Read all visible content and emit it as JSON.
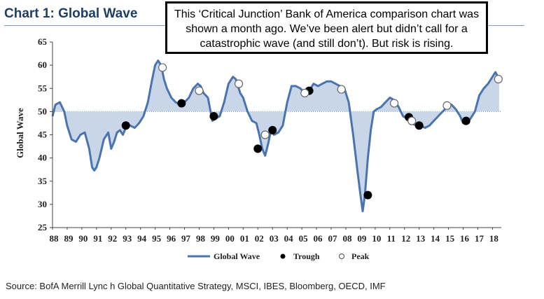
{
  "title": "Chart 1: Global Wave",
  "annotation": "This ‘Critical Junction’ Bank of America comparison chart was shown a month ago. We’ve been alert but didn’t call for a catastrophic wave (and still don’t). But risk is rising.",
  "source": "Source: BofA Merrill Lync h Global Quantitative Strategy, MSCI, IBES, Bloomberg, OECD, IMF",
  "colors": {
    "line": "#4a74b0",
    "fill": "#c9d6e8",
    "title": "#1f3d66",
    "reference": "#6b7f99"
  },
  "chart_data": {
    "type": "line",
    "ylabel": "Global Wave",
    "ylim": [
      25,
      65
    ],
    "yticks": [
      25,
      30,
      35,
      40,
      45,
      50,
      55,
      60,
      65
    ],
    "xlim": [
      1988,
      2018.6
    ],
    "xtick_labels": [
      "88",
      "89",
      "90",
      "91",
      "92",
      "93",
      "94",
      "95",
      "96",
      "97",
      "98",
      "99",
      "00",
      "01",
      "02",
      "03",
      "04",
      "05",
      "06",
      "07",
      "08",
      "09",
      "10",
      "11",
      "12",
      "13",
      "14",
      "15",
      "16",
      "17",
      "18"
    ],
    "reference_line": 50,
    "legend": {
      "placement": "bottom",
      "items": [
        {
          "label": "Global Wave",
          "symbol": "line"
        },
        {
          "label": "Trough",
          "symbol": "filled-dot"
        },
        {
          "label": "Peak",
          "symbol": "open-dot"
        }
      ]
    },
    "series": [
      {
        "name": "Global Wave",
        "x": [
          1988.0,
          1988.2,
          1988.5,
          1988.8,
          1989.0,
          1989.3,
          1989.6,
          1989.9,
          1990.2,
          1990.5,
          1990.7,
          1990.85,
          1991.0,
          1991.2,
          1991.5,
          1991.8,
          1992.0,
          1992.2,
          1992.4,
          1992.6,
          1992.8,
          1993.0,
          1993.3,
          1993.6,
          1993.9,
          1994.2,
          1994.5,
          1994.8,
          1995.0,
          1995.2,
          1995.4,
          1995.6,
          1995.8,
          1996.1,
          1996.4,
          1996.7,
          1997.0,
          1997.3,
          1997.6,
          1997.9,
          1998.1,
          1998.3,
          1998.6,
          1998.9,
          1999.1,
          1999.4,
          1999.7,
          2000.0,
          2000.3,
          2000.5,
          2000.8,
          2001.0,
          2001.3,
          2001.6,
          2001.9,
          2002.1,
          2002.3,
          2002.5,
          2002.7,
          2002.9,
          2003.1,
          2003.4,
          2003.7,
          2004.0,
          2004.3,
          2004.6,
          2004.9,
          2005.2,
          2005.5,
          2005.8,
          2006.1,
          2006.4,
          2006.7,
          2007.0,
          2007.3,
          2007.6,
          2007.9,
          2008.2,
          2008.5,
          2008.8,
          2009.0,
          2009.15,
          2009.3,
          2009.5,
          2009.7,
          2009.9,
          2010.1,
          2010.4,
          2010.7,
          2011.0,
          2011.3,
          2011.6,
          2011.9,
          2012.2,
          2012.5,
          2012.8,
          2013.1,
          2013.4,
          2013.7,
          2014.0,
          2014.3,
          2014.6,
          2014.9,
          2015.2,
          2015.5,
          2015.8,
          2016.0,
          2016.2,
          2016.5,
          2016.8,
          2017.1,
          2017.4,
          2017.7,
          2018.0,
          2018.2,
          2018.45
        ],
        "y": [
          49,
          51.5,
          52,
          50,
          47,
          44,
          43.5,
          45,
          45.5,
          42,
          38,
          37.3,
          38,
          40,
          44,
          45.5,
          42,
          43.5,
          45.5,
          46,
          45,
          46.5,
          47,
          46.5,
          47.5,
          49,
          52,
          57,
          60,
          61,
          60,
          57,
          55,
          53,
          52,
          51.5,
          52,
          53,
          55,
          56,
          55.5,
          54,
          53,
          48,
          48.5,
          49,
          52,
          56,
          57.5,
          57,
          54,
          53,
          50,
          48,
          47.5,
          45,
          42,
          40.5,
          43,
          46,
          45,
          45.5,
          47,
          52,
          55.5,
          55.5,
          55,
          54,
          54.5,
          56,
          55.5,
          56,
          56.5,
          56.5,
          56,
          55.5,
          55,
          52,
          45,
          37,
          32,
          28.5,
          32,
          40,
          46,
          50,
          50.5,
          51,
          52,
          53,
          52.5,
          51,
          49,
          48.5,
          47.5,
          47,
          47,
          46.5,
          47,
          48,
          49,
          50,
          51,
          51.5,
          50.5,
          49,
          47.5,
          47.5,
          48.5,
          50,
          53.5,
          55,
          56,
          57.5,
          58.5,
          57
        ]
      }
    ],
    "troughs": [
      {
        "x": 1993.0,
        "y": 47
      },
      {
        "x": 1996.8,
        "y": 51.8
      },
      {
        "x": 1999.0,
        "y": 49
      },
      {
        "x": 2002.0,
        "y": 42
      },
      {
        "x": 2003.0,
        "y": 46
      },
      {
        "x": 2005.5,
        "y": 54.5
      },
      {
        "x": 2009.5,
        "y": 32
      },
      {
        "x": 2012.3,
        "y": 48.8
      },
      {
        "x": 2013.0,
        "y": 47
      },
      {
        "x": 2016.2,
        "y": 48
      }
    ],
    "peaks": [
      {
        "x": 1995.5,
        "y": 59.5
      },
      {
        "x": 1998.0,
        "y": 54.5
      },
      {
        "x": 2000.7,
        "y": 56
      },
      {
        "x": 2002.5,
        "y": 45
      },
      {
        "x": 2005.2,
        "y": 54
      },
      {
        "x": 2007.7,
        "y": 54.8
      },
      {
        "x": 2011.3,
        "y": 51.8
      },
      {
        "x": 2012.5,
        "y": 48
      },
      {
        "x": 2014.9,
        "y": 51.3
      },
      {
        "x": 2018.4,
        "y": 57
      }
    ]
  }
}
